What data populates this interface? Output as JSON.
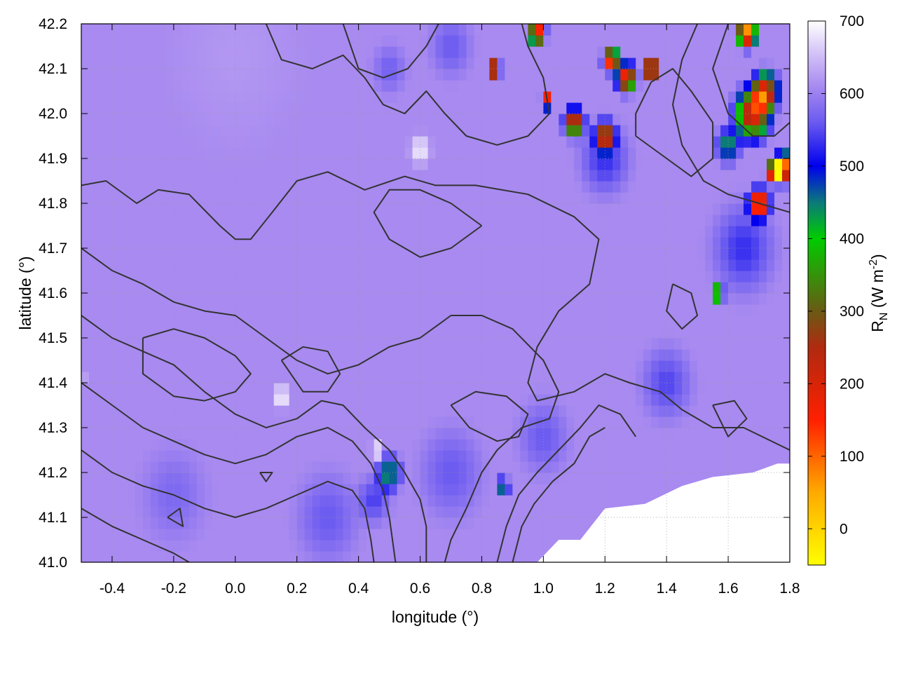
{
  "chart_data": {
    "type": "heatmap",
    "xlabel": "longitude (°)",
    "ylabel": "latitude (°)",
    "colorbar_label": {
      "main": "R",
      "sub": "N",
      "rest": " (W m",
      "sup": "-2",
      "close": ")"
    },
    "xlim": [
      -0.5,
      1.8
    ],
    "ylim": [
      41.0,
      42.2
    ],
    "zlim": [
      -50,
      700
    ],
    "xticks": [
      -0.4,
      -0.2,
      0.0,
      0.2,
      0.4,
      0.6,
      0.8,
      1.0,
      1.2,
      1.4,
      1.6,
      1.8
    ],
    "xtick_labels": [
      "-0.4",
      "-0.2",
      "0.0",
      "0.2",
      "0.4",
      "0.6",
      "0.8",
      "1.0",
      "1.2",
      "1.4",
      "1.6",
      "1.8"
    ],
    "yticks": [
      41.0,
      41.1,
      41.2,
      41.3,
      41.4,
      41.5,
      41.6,
      41.7,
      41.8,
      41.9,
      42.0,
      42.1,
      42.2
    ],
    "ytick_labels": [
      "41.0",
      "41.1",
      "41.2",
      "41.3",
      "41.4",
      "41.5",
      "41.6",
      "41.7",
      "41.8",
      "41.9",
      "42.0",
      "42.1",
      "42.2"
    ],
    "cbticks": [
      0,
      100,
      200,
      300,
      400,
      500,
      600,
      700
    ],
    "cbtick_labels": [
      "0",
      "100",
      "200",
      "300",
      "400",
      "500",
      "600",
      "700"
    ],
    "grid": true,
    "colormap": [
      {
        "v": -50,
        "c": "#ffff00"
      },
      {
        "v": 50,
        "c": "#ffaa00"
      },
      {
        "v": 150,
        "c": "#ff2000"
      },
      {
        "v": 250,
        "c": "#b02a10"
      },
      {
        "v": 300,
        "c": "#6a5a14"
      },
      {
        "v": 400,
        "c": "#00cc00"
      },
      {
        "v": 450,
        "c": "#0b7a7a"
      },
      {
        "v": 500,
        "c": "#0000ee"
      },
      {
        "v": 560,
        "c": "#6a5af0"
      },
      {
        "v": 610,
        "c": "#a88af0"
      },
      {
        "v": 660,
        "c": "#d8c8f8"
      },
      {
        "v": 700,
        "c": "#ffffff"
      }
    ],
    "field": {
      "background": 610,
      "features": [
        {
          "lon": 1.68,
          "lat": 42.0,
          "r": 0.09,
          "value": 170
        },
        {
          "lon": 1.72,
          "lat": 42.05,
          "r": 0.07,
          "value": 200
        },
        {
          "lon": 1.6,
          "lat": 41.93,
          "r": 0.06,
          "value": 420
        },
        {
          "lon": 1.7,
          "lat": 41.8,
          "r": 0.05,
          "value": 10
        },
        {
          "lon": 1.75,
          "lat": 41.87,
          "r": 0.04,
          "value": 20
        },
        {
          "lon": 1.1,
          "lat": 41.98,
          "r": 0.05,
          "value": 160
        },
        {
          "lon": 1.2,
          "lat": 41.95,
          "r": 0.05,
          "value": 180
        },
        {
          "lon": 1.27,
          "lat": 42.08,
          "r": 0.05,
          "value": 120
        },
        {
          "lon": 1.35,
          "lat": 42.1,
          "r": 0.04,
          "value": 20
        },
        {
          "lon": 1.22,
          "lat": 42.12,
          "r": 0.04,
          "value": 40
        },
        {
          "lon": 1.01,
          "lat": 42.03,
          "r": 0.025,
          "value": 20
        },
        {
          "lon": 0.84,
          "lat": 42.1,
          "r": 0.03,
          "value": 30
        },
        {
          "lon": 0.98,
          "lat": 42.18,
          "r": 0.04,
          "value": 60
        },
        {
          "lon": 1.66,
          "lat": 42.18,
          "r": 0.05,
          "value": 30
        },
        {
          "lon": 1.78,
          "lat": 41.88,
          "r": 0.05,
          "value": 30
        },
        {
          "lon": 1.57,
          "lat": 41.6,
          "r": 0.025,
          "value": 20
        },
        {
          "lon": 1.58,
          "lat": 41.7,
          "r": 0.015,
          "value": 30
        },
        {
          "lon": 1.2,
          "lat": 41.9,
          "r": 0.12,
          "value": 530
        },
        {
          "lon": 1.65,
          "lat": 41.7,
          "r": 0.15,
          "value": 530
        },
        {
          "lon": 1.4,
          "lat": 41.4,
          "r": 0.12,
          "value": 545
        },
        {
          "lon": 0.5,
          "lat": 41.2,
          "r": 0.06,
          "value": 420
        },
        {
          "lon": 0.45,
          "lat": 41.14,
          "r": 0.08,
          "value": 540
        },
        {
          "lon": 0.87,
          "lat": 41.17,
          "r": 0.03,
          "value": 400
        },
        {
          "lon": 0.3,
          "lat": 41.1,
          "r": 0.15,
          "value": 560
        },
        {
          "lon": -0.2,
          "lat": 41.15,
          "r": 0.15,
          "value": 575
        },
        {
          "lon": 0.7,
          "lat": 41.2,
          "r": 0.15,
          "value": 560
        },
        {
          "lon": 1.0,
          "lat": 41.28,
          "r": 0.12,
          "value": 560
        },
        {
          "lon": 0.7,
          "lat": 42.15,
          "r": 0.1,
          "value": 560
        },
        {
          "lon": 0.5,
          "lat": 42.1,
          "r": 0.08,
          "value": 565
        },
        {
          "lon": 0.6,
          "lat": 41.92,
          "r": 0.05,
          "value": 690
        },
        {
          "lon": 0.15,
          "lat": 41.37,
          "r": 0.04,
          "value": 700
        },
        {
          "lon": -0.5,
          "lat": 41.42,
          "r": 0.02,
          "value": 700
        },
        {
          "lon": 0.46,
          "lat": 41.25,
          "r": 0.03,
          "value": 700
        },
        {
          "lon": 0.0,
          "lat": 42.13,
          "r": 0.3,
          "value": 620
        }
      ],
      "nodata": {
        "corner_polyline": [
          [
            0.98,
            41.0
          ],
          [
            1.05,
            41.05
          ],
          [
            1.12,
            41.05
          ],
          [
            1.2,
            41.12
          ],
          [
            1.33,
            41.13
          ],
          [
            1.45,
            41.17
          ],
          [
            1.55,
            41.19
          ],
          [
            1.68,
            41.2
          ],
          [
            1.76,
            41.22
          ],
          [
            1.8,
            41.22
          ],
          [
            1.8,
            41.0
          ]
        ]
      }
    },
    "contour_lines": [
      [
        [
          -0.5,
          41.84
        ],
        [
          -0.42,
          41.85
        ],
        [
          -0.32,
          41.8
        ],
        [
          -0.25,
          41.83
        ],
        [
          -0.15,
          41.82
        ],
        [
          -0.05,
          41.75
        ],
        [
          0.0,
          41.72
        ],
        [
          0.05,
          41.72
        ],
        [
          0.12,
          41.78
        ],
        [
          0.2,
          41.85
        ],
        [
          0.3,
          41.87
        ],
        [
          0.42,
          41.83
        ],
        [
          0.55,
          41.86
        ],
        [
          0.65,
          41.84
        ],
        [
          0.78,
          41.84
        ],
        [
          0.95,
          41.82
        ],
        [
          1.1,
          41.77
        ],
        [
          1.18,
          41.72
        ],
        [
          1.15,
          41.62
        ],
        [
          1.05,
          41.56
        ],
        [
          0.98,
          41.48
        ],
        [
          0.95,
          41.4
        ],
        [
          0.98,
          41.36
        ],
        [
          1.1,
          41.38
        ],
        [
          1.2,
          41.42
        ],
        [
          1.28,
          41.4
        ],
        [
          1.38,
          41.38
        ],
        [
          1.45,
          41.34
        ],
        [
          1.55,
          41.3
        ],
        [
          1.65,
          41.3
        ],
        [
          1.8,
          41.25
        ]
      ],
      [
        [
          -0.5,
          41.7
        ],
        [
          -0.4,
          41.65
        ],
        [
          -0.3,
          41.62
        ],
        [
          -0.2,
          41.58
        ],
        [
          -0.1,
          41.56
        ],
        [
          0.0,
          41.55
        ],
        [
          0.1,
          41.5
        ],
        [
          0.2,
          41.45
        ],
        [
          0.3,
          41.42
        ],
        [
          0.4,
          41.44
        ],
        [
          0.5,
          41.48
        ],
        [
          0.6,
          41.5
        ],
        [
          0.7,
          41.55
        ],
        [
          0.8,
          41.55
        ],
        [
          0.9,
          41.52
        ],
        [
          1.0,
          41.45
        ],
        [
          1.05,
          41.38
        ],
        [
          1.02,
          41.32
        ],
        [
          0.93,
          41.3
        ],
        [
          0.85,
          41.25
        ],
        [
          0.8,
          41.2
        ],
        [
          0.75,
          41.12
        ],
        [
          0.7,
          41.05
        ],
        [
          0.68,
          41.0
        ]
      ],
      [
        [
          -0.5,
          41.55
        ],
        [
          -0.4,
          41.5
        ],
        [
          -0.3,
          41.47
        ],
        [
          -0.2,
          41.44
        ],
        [
          -0.1,
          41.38
        ],
        [
          0.0,
          41.33
        ],
        [
          0.1,
          41.3
        ],
        [
          0.2,
          41.32
        ],
        [
          0.28,
          41.36
        ],
        [
          0.35,
          41.35
        ],
        [
          0.42,
          41.3
        ],
        [
          0.5,
          41.25
        ],
        [
          0.55,
          41.2
        ],
        [
          0.6,
          41.14
        ],
        [
          0.62,
          41.08
        ],
        [
          0.62,
          41.0
        ]
      ],
      [
        [
          -0.5,
          41.4
        ],
        [
          -0.4,
          41.35
        ],
        [
          -0.3,
          41.3
        ],
        [
          -0.2,
          41.27
        ],
        [
          -0.1,
          41.24
        ],
        [
          0.0,
          41.22
        ],
        [
          0.1,
          41.24
        ],
        [
          0.2,
          41.28
        ],
        [
          0.3,
          41.3
        ],
        [
          0.38,
          41.27
        ],
        [
          0.44,
          41.22
        ],
        [
          0.48,
          41.16
        ],
        [
          0.5,
          41.1
        ],
        [
          0.52,
          41.0
        ]
      ],
      [
        [
          -0.5,
          41.25
        ],
        [
          -0.4,
          41.2
        ],
        [
          -0.3,
          41.17
        ],
        [
          -0.2,
          41.15
        ],
        [
          -0.1,
          41.12
        ],
        [
          0.0,
          41.1
        ],
        [
          0.1,
          41.12
        ],
        [
          0.2,
          41.15
        ],
        [
          0.3,
          41.18
        ],
        [
          0.38,
          41.16
        ],
        [
          0.42,
          41.12
        ],
        [
          0.44,
          41.05
        ],
        [
          0.45,
          41.0
        ]
      ],
      [
        [
          -0.5,
          41.12
        ],
        [
          -0.4,
          41.08
        ],
        [
          -0.3,
          41.05
        ],
        [
          -0.2,
          41.02
        ],
        [
          -0.15,
          41.0
        ]
      ],
      [
        [
          0.1,
          42.2
        ],
        [
          0.15,
          42.12
        ],
        [
          0.25,
          42.1
        ],
        [
          0.35,
          42.13
        ],
        [
          0.42,
          42.08
        ],
        [
          0.48,
          42.02
        ],
        [
          0.55,
          42.0
        ],
        [
          0.62,
          42.05
        ],
        [
          0.68,
          42.0
        ],
        [
          0.75,
          41.95
        ],
        [
          0.85,
          41.93
        ],
        [
          0.95,
          41.95
        ],
        [
          1.02,
          42.0
        ],
        [
          1.0,
          42.08
        ],
        [
          0.95,
          42.15
        ],
        [
          0.93,
          42.2
        ]
      ],
      [
        [
          0.35,
          42.2
        ],
        [
          0.4,
          42.1
        ],
        [
          0.48,
          42.08
        ],
        [
          0.56,
          42.1
        ],
        [
          0.62,
          42.15
        ],
        [
          0.66,
          42.2
        ]
      ],
      [
        [
          0.8,
          41.75
        ],
        [
          0.7,
          41.7
        ],
        [
          0.6,
          41.68
        ],
        [
          0.5,
          41.72
        ],
        [
          0.45,
          41.78
        ],
        [
          0.5,
          41.83
        ],
        [
          0.6,
          41.83
        ],
        [
          0.7,
          41.8
        ],
        [
          0.8,
          41.75
        ]
      ],
      [
        [
          0.7,
          41.35
        ],
        [
          0.78,
          41.38
        ],
        [
          0.88,
          41.37
        ],
        [
          0.95,
          41.33
        ],
        [
          0.92,
          41.28
        ],
        [
          0.85,
          41.27
        ],
        [
          0.76,
          41.3
        ],
        [
          0.7,
          41.35
        ]
      ],
      [
        [
          0.15,
          41.45
        ],
        [
          0.22,
          41.48
        ],
        [
          0.3,
          41.47
        ],
        [
          0.34,
          41.42
        ],
        [
          0.3,
          41.38
        ],
        [
          0.22,
          41.38
        ],
        [
          0.15,
          41.45
        ]
      ],
      [
        [
          1.42,
          41.62
        ],
        [
          1.48,
          41.6
        ],
        [
          1.5,
          41.55
        ],
        [
          1.45,
          41.52
        ],
        [
          1.4,
          41.56
        ],
        [
          1.42,
          41.62
        ]
      ],
      [
        [
          1.55,
          41.35
        ],
        [
          1.62,
          41.36
        ],
        [
          1.66,
          41.32
        ],
        [
          1.6,
          41.28
        ],
        [
          1.55,
          41.35
        ]
      ],
      [
        [
          1.3,
          41.95
        ],
        [
          1.4,
          41.9
        ],
        [
          1.48,
          41.86
        ],
        [
          1.55,
          41.9
        ],
        [
          1.55,
          41.98
        ],
        [
          1.48,
          42.05
        ],
        [
          1.42,
          42.1
        ],
        [
          1.35,
          42.07
        ],
        [
          1.3,
          42.0
        ],
        [
          1.3,
          41.95
        ]
      ],
      [
        [
          1.6,
          42.2
        ],
        [
          1.55,
          42.1
        ],
        [
          1.6,
          42.0
        ],
        [
          1.68,
          41.95
        ],
        [
          1.75,
          41.95
        ],
        [
          1.8,
          41.98
        ]
      ],
      [
        [
          1.5,
          42.2
        ],
        [
          1.45,
          42.12
        ],
        [
          1.42,
          42.02
        ],
        [
          1.45,
          41.93
        ],
        [
          1.52,
          41.85
        ],
        [
          1.6,
          41.82
        ],
        [
          1.7,
          41.8
        ],
        [
          1.8,
          41.78
        ]
      ],
      [
        [
          0.85,
          41.0
        ],
        [
          0.88,
          41.08
        ],
        [
          0.92,
          41.15
        ],
        [
          0.98,
          41.2
        ],
        [
          1.05,
          41.25
        ],
        [
          1.12,
          41.3
        ],
        [
          1.18,
          41.35
        ],
        [
          1.25,
          41.33
        ],
        [
          1.3,
          41.28
        ]
      ],
      [
        [
          0.9,
          41.0
        ],
        [
          0.93,
          41.08
        ],
        [
          0.97,
          41.13
        ],
        [
          1.03,
          41.18
        ],
        [
          1.1,
          41.22
        ],
        [
          1.15,
          41.28
        ],
        [
          1.2,
          41.3
        ]
      ],
      [
        [
          -0.3,
          41.5
        ],
        [
          -0.2,
          41.52
        ],
        [
          -0.1,
          41.5
        ],
        [
          0.0,
          41.46
        ],
        [
          0.05,
          41.42
        ],
        [
          0.0,
          41.38
        ],
        [
          -0.1,
          41.36
        ],
        [
          -0.2,
          41.37
        ],
        [
          -0.3,
          41.42
        ],
        [
          -0.3,
          41.5
        ]
      ],
      [
        [
          -0.22,
          41.1
        ],
        [
          -0.18,
          41.12
        ],
        [
          -0.17,
          41.08
        ],
        [
          -0.22,
          41.1
        ]
      ],
      [
        [
          0.08,
          41.2
        ],
        [
          0.12,
          41.2
        ],
        [
          0.1,
          41.18
        ],
        [
          0.08,
          41.2
        ]
      ]
    ]
  }
}
